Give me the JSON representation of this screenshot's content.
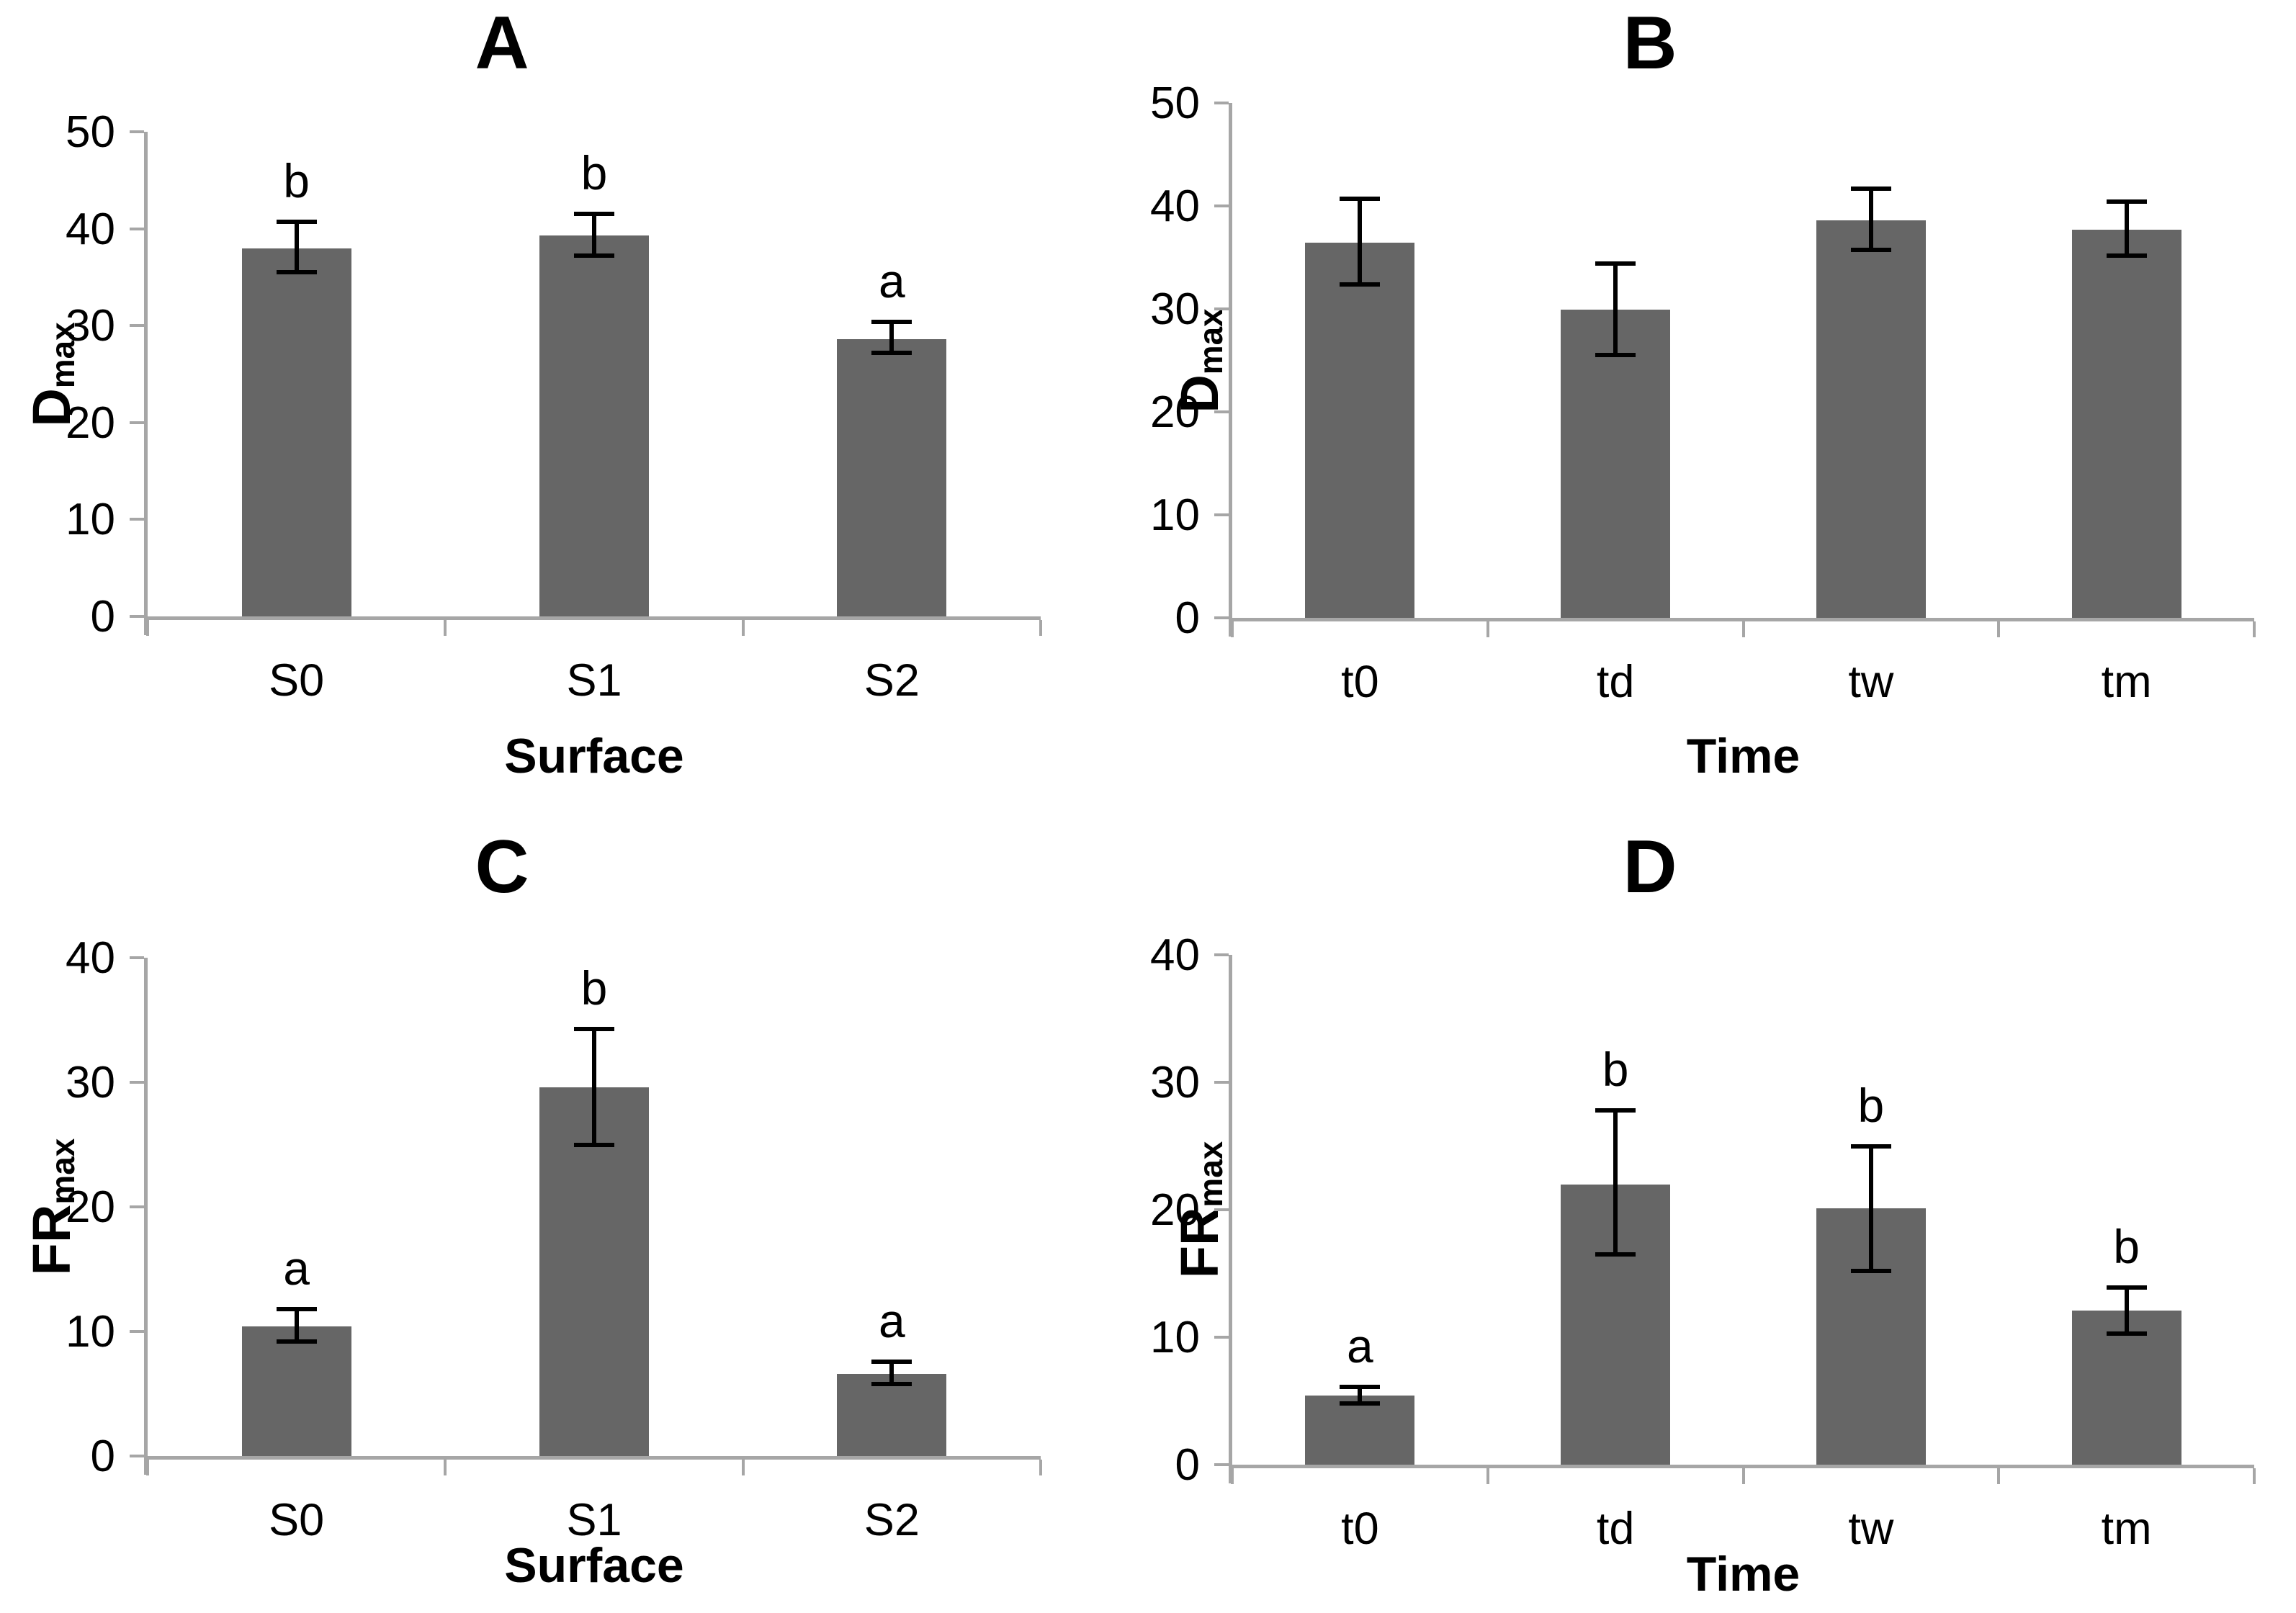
{
  "figure": {
    "background_color": "#ffffff",
    "bar_color": "#666666",
    "axis_color": "#a6a6a6",
    "error_bar_color": "#000000",
    "text_color": "#000000"
  },
  "chart_data": [
    {
      "type": "bar",
      "title": "A",
      "ylabel_main": "D",
      "ylabel_sub": "max",
      "xlabel": "Surface",
      "categories": [
        "S0",
        "S1",
        "S2"
      ],
      "values": [
        38.0,
        39.3,
        28.6
      ],
      "error_low": [
        35.5,
        37.2,
        27.2
      ],
      "error_high": [
        40.7,
        41.5,
        30.4
      ],
      "sig_letters": [
        "b",
        "b",
        "a"
      ],
      "ylim": [
        0,
        50
      ],
      "ytick_step": 10,
      "grid": false,
      "legend": "none"
    },
    {
      "type": "bar",
      "title": "B",
      "ylabel_main": "D",
      "ylabel_sub": "max",
      "xlabel": "Time",
      "categories": [
        "t0",
        "td",
        "tw",
        "tm"
      ],
      "values": [
        36.4,
        29.9,
        38.6,
        37.7
      ],
      "error_low": [
        32.4,
        25.5,
        35.7,
        35.2
      ],
      "error_high": [
        40.7,
        34.4,
        41.7,
        40.4
      ],
      "sig_letters": [
        "",
        "",
        "",
        ""
      ],
      "ylim": [
        0,
        50
      ],
      "ytick_step": 10,
      "grid": false,
      "legend": "none"
    },
    {
      "type": "bar",
      "title": "C",
      "ylabel_main": "FR",
      "ylabel_sub": "max",
      "xlabel": "Surface",
      "categories": [
        "S0",
        "S1",
        "S2"
      ],
      "values": [
        10.4,
        29.6,
        6.6
      ],
      "error_low": [
        9.2,
        25.0,
        5.8
      ],
      "error_high": [
        11.8,
        34.3,
        7.6
      ],
      "sig_letters": [
        "a",
        "b",
        "a"
      ],
      "ylim": [
        0,
        40
      ],
      "ytick_step": 10,
      "grid": false,
      "legend": "none"
    },
    {
      "type": "bar",
      "title": "D",
      "ylabel_main": "FR",
      "ylabel_sub": "max",
      "xlabel": "Time",
      "categories": [
        "t0",
        "td",
        "tw",
        "tm"
      ],
      "values": [
        5.4,
        22.0,
        20.1,
        12.1
      ],
      "error_low": [
        4.8,
        16.5,
        15.2,
        10.3
      ],
      "error_high": [
        6.1,
        27.8,
        25.0,
        13.9
      ],
      "sig_letters": [
        "a",
        "b",
        "b",
        "b"
      ],
      "ylim": [
        0,
        40
      ],
      "ytick_step": 10,
      "grid": false,
      "legend": "none"
    }
  ]
}
